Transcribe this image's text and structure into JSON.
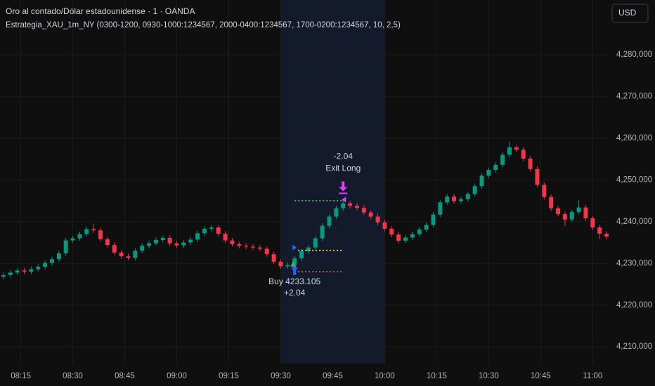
{
  "chart_data": {
    "type": "candlestick",
    "title": "Oro al contado/Dólar estadounidense · 1 · OANDA",
    "subtitle": "Estrategia_XAU_1m_NY (0300-1200, 0930-1000:1234567, 2000-0400:1234567, 1700-0200:1234567, 10, 2,5)",
    "currency": "USD",
    "up_color": "#089981",
    "down_color": "#f23645",
    "grid": true,
    "x": [
      490,
      492,
      494,
      496,
      498,
      500,
      502,
      504,
      506,
      508,
      510,
      512,
      514,
      516,
      518,
      520,
      522,
      524,
      526,
      528,
      530,
      532,
      534,
      536,
      538,
      540,
      542,
      544,
      546,
      548,
      550,
      552,
      554,
      556,
      558,
      560,
      562,
      564,
      566,
      568,
      570,
      572,
      574,
      576,
      578,
      580,
      582,
      584,
      586,
      588,
      590,
      592,
      594,
      596,
      598,
      600,
      602,
      604,
      606,
      608,
      610,
      612,
      614,
      616,
      618,
      620,
      622,
      624,
      626,
      628,
      630,
      632,
      634,
      636,
      638,
      640,
      642,
      644,
      646,
      648,
      650,
      652,
      654,
      656,
      658,
      660,
      662,
      664
    ],
    "open": [
      4226800,
      4227200,
      4227800,
      4228300,
      4228000,
      4228600,
      4229200,
      4230100,
      4231000,
      4232400,
      4235500,
      4236000,
      4237000,
      4238200,
      4237900,
      4235800,
      4234400,
      4232600,
      4231700,
      4231300,
      4233000,
      4234200,
      4234800,
      4235600,
      4236100,
      4234800,
      4234300,
      4235000,
      4235700,
      4237200,
      4238300,
      4238600,
      4237100,
      4235500,
      4234600,
      4234200,
      4234000,
      4233800,
      4233500,
      4232200,
      4230400,
      4229300,
      4229600,
      4231200,
      4232900,
      4233800,
      4236000,
      4239000,
      4241200,
      4243200,
      4244400,
      4243800,
      4243300,
      4242200,
      4241200,
      4239800,
      4238300,
      4236900,
      4235400,
      4236200,
      4237000,
      4238100,
      4239200,
      4241700,
      4244600,
      4246000,
      4244900,
      4245400,
      4246600,
      4248500,
      4251000,
      4252400,
      4253600,
      4256000,
      4257800,
      4257200,
      4255100,
      4252600,
      4248800,
      4245900,
      4243200,
      4241800,
      4240500,
      4242300,
      4243400,
      4240800,
      4238600,
      4237100
    ],
    "high": [
      4227800,
      4228400,
      4228900,
      4228900,
      4229200,
      4229800,
      4230700,
      4231600,
      4233000,
      4236100,
      4236600,
      4237600,
      4238800,
      4239400,
      4238500,
      4236400,
      4235000,
      4233200,
      4232300,
      4233600,
      4234800,
      4235400,
      4236200,
      4236700,
      4236700,
      4235400,
      4235600,
      4236300,
      4237800,
      4238900,
      4239200,
      4239200,
      4237700,
      4236100,
      4235200,
      4234800,
      4234600,
      4234400,
      4234100,
      4232800,
      4231000,
      4230200,
      4231800,
      4233500,
      4234400,
      4236600,
      4239600,
      4241800,
      4243800,
      4245000,
      4245000,
      4244400,
      4243900,
      4242800,
      4241800,
      4240400,
      4238900,
      4237500,
      4236800,
      4237600,
      4238700,
      4239800,
      4242300,
      4245200,
      4246600,
      4246600,
      4246000,
      4247200,
      4249100,
      4251600,
      4253000,
      4254200,
      4256600,
      4259200,
      4258400,
      4257800,
      4255700,
      4253200,
      4249400,
      4246500,
      4243800,
      4242400,
      4242900,
      4245200,
      4244000,
      4241400,
      4239200,
      4237700
    ],
    "low": [
      4226200,
      4226600,
      4227200,
      4227400,
      4227400,
      4228000,
      4228600,
      4229500,
      4230400,
      4231800,
      4234900,
      4235400,
      4236400,
      4237300,
      4235200,
      4233800,
      4232000,
      4231100,
      4230700,
      4230700,
      4232400,
      4233600,
      4234200,
      4235000,
      4234200,
      4233700,
      4233700,
      4234400,
      4235100,
      4236600,
      4237700,
      4236500,
      4234900,
      4234000,
      4233600,
      4233400,
      4233200,
      4232900,
      4231600,
      4229800,
      4228700,
      4228700,
      4229000,
      4230600,
      4232300,
      4233200,
      4235400,
      4238400,
      4240600,
      4242600,
      4243200,
      4242700,
      4241600,
      4240600,
      4239200,
      4237700,
      4236300,
      4234800,
      4234800,
      4235600,
      4236400,
      4237500,
      4238600,
      4241100,
      4244000,
      4244300,
      4244300,
      4244800,
      4246000,
      4247900,
      4250400,
      4251800,
      4253000,
      4255400,
      4256600,
      4254500,
      4252000,
      4248200,
      4245300,
      4242600,
      4241200,
      4239000,
      4239900,
      4241700,
      4240200,
      4238000,
      4235800,
      4235800
    ],
    "close": [
      4227200,
      4227800,
      4228300,
      4228000,
      4228600,
      4229200,
      4230100,
      4231000,
      4232400,
      4235500,
      4236000,
      4237000,
      4238200,
      4237900,
      4235800,
      4234400,
      4232600,
      4231700,
      4231300,
      4233000,
      4234200,
      4234800,
      4235600,
      4236100,
      4234800,
      4234300,
      4235000,
      4235700,
      4237200,
      4238300,
      4238600,
      4237100,
      4235500,
      4234600,
      4234200,
      4234000,
      4233800,
      4233500,
      4232200,
      4230400,
      4229300,
      4229600,
      4231200,
      4232900,
      4233800,
      4236000,
      4239000,
      4241200,
      4243200,
      4244400,
      4243800,
      4243300,
      4242200,
      4241200,
      4239800,
      4238300,
      4236900,
      4235400,
      4236200,
      4237000,
      4238100,
      4239200,
      4241700,
      4244600,
      4246000,
      4244900,
      4245400,
      4246600,
      4248500,
      4251000,
      4252400,
      4253600,
      4256000,
      4257800,
      4257200,
      4255100,
      4252600,
      4248800,
      4245900,
      4243200,
      4241800,
      4240500,
      4242300,
      4243400,
      4240800,
      4238600,
      4237100,
      4236400
    ],
    "xlim": [
      489,
      665
    ],
    "xticks": [
      {
        "value": 495,
        "label": "08:15"
      },
      {
        "value": 510,
        "label": "08:30"
      },
      {
        "value": 525,
        "label": "08:45"
      },
      {
        "value": 540,
        "label": "09:00"
      },
      {
        "value": 555,
        "label": "09:15"
      },
      {
        "value": 570,
        "label": "09:30"
      },
      {
        "value": 585,
        "label": "09:45"
      },
      {
        "value": 600,
        "label": "10:00"
      },
      {
        "value": 615,
        "label": "10:15"
      },
      {
        "value": 630,
        "label": "10:30"
      },
      {
        "value": 645,
        "label": "10:45"
      },
      {
        "value": 660,
        "label": "11:00"
      }
    ],
    "ylim": [
      4206000,
      4293100
    ],
    "yticks": [
      {
        "value": 4210000,
        "label": "4,210,000"
      },
      {
        "value": 4220000,
        "label": "4,220,000"
      },
      {
        "value": 4230000,
        "label": "4,230,000"
      },
      {
        "value": 4240000,
        "label": "4,240,000"
      },
      {
        "value": 4250000,
        "label": "4,250,000"
      },
      {
        "value": 4260000,
        "label": "4,260,000"
      },
      {
        "value": 4270000,
        "label": "4,270,000"
      },
      {
        "value": 4280000,
        "label": "4,280,000"
      }
    ],
    "session": [
      570,
      600
    ],
    "levels": [
      {
        "value": 4245000,
        "from": 574,
        "to": 588,
        "color": "#4caf50"
      },
      {
        "value": 4233100,
        "from": 575,
        "to": 588,
        "color": "#e0c341"
      },
      {
        "value": 4228000,
        "from": 575,
        "to": 588,
        "color": "#e04b5a"
      }
    ],
    "trades": {
      "entry_x": 574,
      "entry_price": 4233105,
      "exit_x": 588,
      "exit_price": 4245100,
      "entry_label": "Buy 4233.105",
      "entry_profit": "+2.04",
      "exit_profit": "-2.04",
      "exit_label": "Exit Long"
    }
  }
}
